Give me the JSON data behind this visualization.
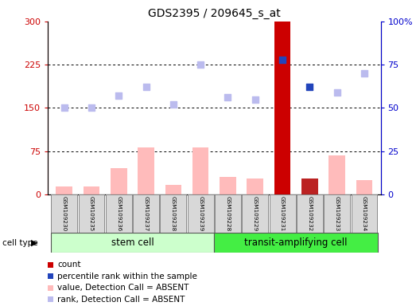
{
  "title": "GDS2395 / 209645_s_at",
  "samples": [
    "GSM109230",
    "GSM109235",
    "GSM109236",
    "GSM109237",
    "GSM109238",
    "GSM109239",
    "GSM109228",
    "GSM109229",
    "GSM109231",
    "GSM109232",
    "GSM109233",
    "GSM109234"
  ],
  "value_bars": [
    13,
    14,
    45,
    82,
    17,
    82,
    30,
    27,
    300,
    28,
    68,
    25
  ],
  "value_bar_colors": [
    "#ffbbbb",
    "#ffbbbb",
    "#ffbbbb",
    "#ffbbbb",
    "#ffbbbb",
    "#ffbbbb",
    "#ffbbbb",
    "#ffbbbb",
    "#cc0000",
    "#bb2222",
    "#ffbbbb",
    "#ffbbbb"
  ],
  "rank_dots": [
    50,
    50,
    57,
    62,
    52,
    75,
    56,
    55,
    78,
    62,
    59,
    70
  ],
  "rank_dot_colors": [
    "#bbbbee",
    "#bbbbee",
    "#bbbbee",
    "#bbbbee",
    "#bbbbee",
    "#bbbbee",
    "#bbbbee",
    "#bbbbee",
    "#2244bb",
    "#2244bb",
    "#bbbbee",
    "#bbbbee"
  ],
  "ylim_left": [
    0,
    300
  ],
  "ylim_right": [
    0,
    100
  ],
  "yticks_left": [
    0,
    75,
    150,
    225,
    300
  ],
  "yticks_right": [
    0,
    25,
    50,
    75,
    100
  ],
  "ytick_labels_left": [
    "0",
    "75",
    "150",
    "225",
    "300"
  ],
  "ytick_labels_right": [
    "0",
    "25",
    "50",
    "75",
    "100%"
  ],
  "grid_values": [
    75,
    150,
    225
  ],
  "stem_indices": [
    0,
    1,
    2,
    3,
    4,
    5
  ],
  "transit_indices": [
    6,
    7,
    8,
    9,
    10,
    11
  ],
  "stem_cell_label": "stem cell",
  "transit_label": "transit-amplifying cell",
  "cell_type_label": "cell type",
  "stem_color_light": "#ccffcc",
  "stem_color": "#ccffcc",
  "transit_color": "#44ee44",
  "legend_items": [
    {
      "color": "#cc0000",
      "label": "count"
    },
    {
      "color": "#2244bb",
      "label": "percentile rank within the sample"
    },
    {
      "color": "#ffbbbb",
      "label": "value, Detection Call = ABSENT"
    },
    {
      "color": "#bbbbee",
      "label": "rank, Detection Call = ABSENT"
    }
  ],
  "background_color": "#ffffff",
  "bar_width": 0.6,
  "dot_size": 40
}
